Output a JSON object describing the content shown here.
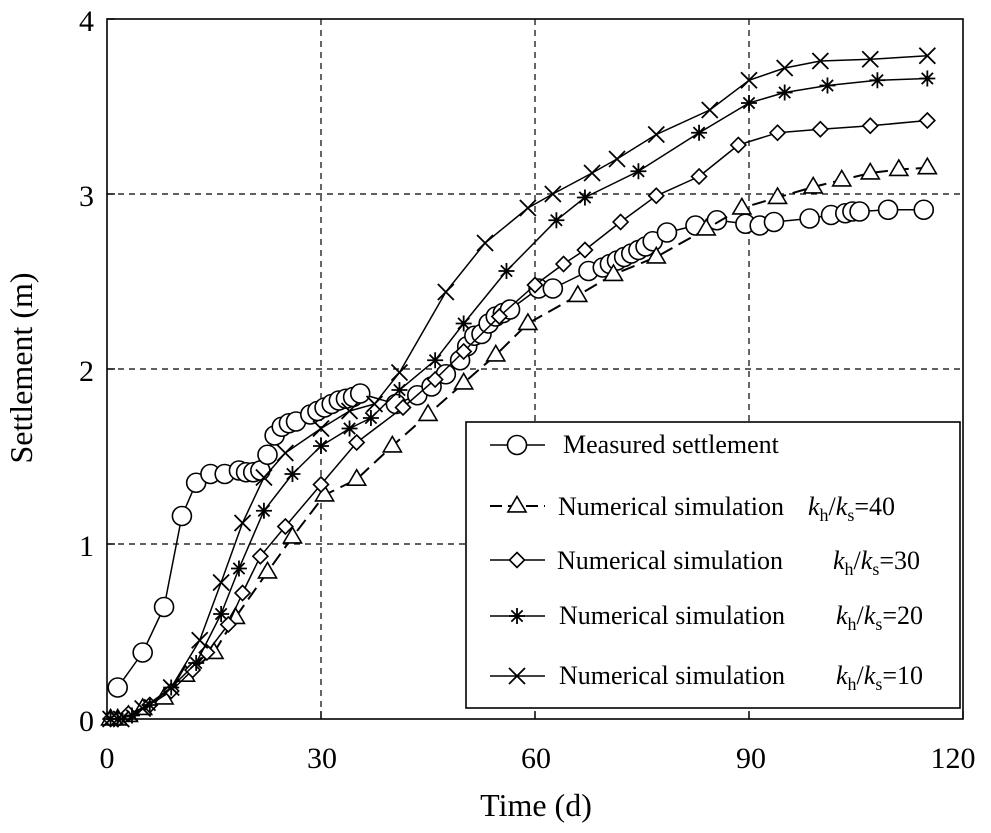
{
  "chart_data": {
    "type": "line",
    "title": "",
    "xlabel": "Time (d)",
    "ylabel": "Settlement (m)",
    "xlim": [
      0,
      120
    ],
    "ylim": [
      0,
      4
    ],
    "xticks": [
      0,
      30,
      60,
      90,
      120
    ],
    "yticks": [
      0,
      1,
      2,
      3,
      4
    ],
    "xtick_labels": [
      "0",
      "30",
      "60",
      "90",
      "120"
    ],
    "ytick_labels": [
      "0",
      "1",
      "2",
      "3",
      "4"
    ],
    "grid": true,
    "legend_position": "bottom-right",
    "series": [
      {
        "key": "measured",
        "name": "Measured settlement",
        "legend_main": "Measured settlement",
        "legend_k": "",
        "legend_h": "",
        "legend_s": "",
        "legend_val": "",
        "marker": "circle",
        "dash": false,
        "x": [
          1.5,
          5,
          8,
          10.5,
          12.5,
          14.5,
          16.5,
          18.5,
          19.5,
          20.5,
          21.5,
          22.5,
          23.5,
          24.5,
          25.5,
          26.5,
          28.5,
          29.5,
          30.5,
          31.5,
          32.5,
          33.5,
          34.5,
          35.5,
          40.5,
          43.5,
          45.5,
          47.5,
          49.5,
          50.5,
          51.5,
          52.5,
          53.5,
          54.5,
          55.5,
          56.5,
          60.5,
          62.5,
          67.5,
          69.5,
          70.5,
          71.5,
          72.5,
          73.5,
          74.5,
          75.5,
          76.5,
          78.5,
          82.5,
          85.5,
          89.5,
          91.5,
          93.5,
          98.5,
          101.5,
          103.5,
          104.5,
          105.5,
          109.5,
          114.5
        ],
        "y": [
          0.18,
          0.38,
          0.64,
          1.16,
          1.35,
          1.4,
          1.4,
          1.42,
          1.41,
          1.41,
          1.42,
          1.51,
          1.62,
          1.67,
          1.69,
          1.7,
          1.74,
          1.76,
          1.78,
          1.8,
          1.82,
          1.83,
          1.84,
          1.86,
          1.8,
          1.85,
          1.9,
          1.97,
          2.05,
          2.13,
          2.19,
          2.2,
          2.26,
          2.3,
          2.32,
          2.34,
          2.46,
          2.46,
          2.56,
          2.58,
          2.6,
          2.62,
          2.64,
          2.66,
          2.68,
          2.7,
          2.73,
          2.78,
          2.82,
          2.85,
          2.83,
          2.82,
          2.84,
          2.86,
          2.88,
          2.89,
          2.9,
          2.9,
          2.91,
          2.91
        ]
      },
      {
        "key": "k40",
        "name": "Numerical simulation kh/ks=40",
        "legend_main": "Numerical simulation",
        "legend_k": "k",
        "legend_h": "h",
        "legend_s": "s",
        "legend_val": "=40",
        "marker": "triangle",
        "dash": true,
        "x": [
          0.5,
          1.5,
          3,
          5,
          8,
          11,
          15,
          18,
          22.5,
          26,
          30.5,
          35,
          40,
          45,
          50,
          54.5,
          59,
          66,
          71,
          77,
          84,
          89,
          94,
          99,
          103,
          107,
          111,
          115
        ],
        "y": [
          0,
          0,
          0.02,
          0.06,
          0.12,
          0.25,
          0.38,
          0.58,
          0.84,
          1.04,
          1.28,
          1.37,
          1.56,
          1.74,
          1.92,
          2.08,
          2.26,
          2.42,
          2.54,
          2.64,
          2.8,
          2.92,
          2.98,
          3.04,
          3.08,
          3.12,
          3.14,
          3.15
        ]
      },
      {
        "key": "k30",
        "name": "Numerical simulation kh/ks=30",
        "legend_main": "Numerical simulation",
        "legend_k": "k",
        "legend_h": "h",
        "legend_s": "s",
        "legend_val": "=30",
        "marker": "diamond",
        "dash": false,
        "x": [
          0.5,
          1.5,
          3,
          6,
          9,
          12,
          14,
          17,
          19,
          21.5,
          25,
          30,
          35,
          41.5,
          46,
          50,
          55,
          60,
          64,
          67,
          72,
          77,
          83,
          88.5,
          94,
          100,
          107,
          115
        ],
        "y": [
          0,
          0,
          0.03,
          0.08,
          0.16,
          0.28,
          0.38,
          0.54,
          0.72,
          0.93,
          1.1,
          1.34,
          1.58,
          1.78,
          1.94,
          2.1,
          2.3,
          2.48,
          2.6,
          2.68,
          2.84,
          2.99,
          3.1,
          3.28,
          3.35,
          3.37,
          3.39,
          3.42
        ]
      },
      {
        "key": "k20",
        "name": "Numerical simulation kh/ks=20",
        "legend_main": "Numerical simulation",
        "legend_k": "k",
        "legend_h": "h",
        "legend_s": "s",
        "legend_val": "=20",
        "marker": "star",
        "dash": false,
        "x": [
          0.5,
          1.5,
          3.5,
          6,
          9,
          12.5,
          16,
          18.5,
          22,
          26,
          30,
          34,
          37,
          41,
          46,
          50,
          56,
          63,
          67,
          74.5,
          83,
          90,
          95,
          101,
          108,
          115
        ],
        "y": [
          0,
          0,
          0.02,
          0.08,
          0.18,
          0.32,
          0.6,
          0.86,
          1.19,
          1.4,
          1.56,
          1.66,
          1.72,
          1.88,
          2.05,
          2.26,
          2.56,
          2.85,
          2.98,
          3.13,
          3.35,
          3.52,
          3.58,
          3.62,
          3.65,
          3.66
        ]
      },
      {
        "key": "k10",
        "name": "Numerical simulation kh/ks=10",
        "legend_main": "Numerical simulation",
        "legend_k": "k",
        "legend_h": "h",
        "legend_s": "s",
        "legend_val": "=10",
        "marker": "x",
        "dash": false,
        "x": [
          0.5,
          2,
          5,
          9,
          13,
          16,
          19,
          22,
          25,
          30,
          34,
          37.5,
          41,
          47.5,
          53,
          59,
          62.5,
          68,
          71.5,
          77,
          84.5,
          90,
          95,
          100,
          107,
          115
        ],
        "y": [
          0,
          0,
          0.06,
          0.18,
          0.45,
          0.78,
          1.12,
          1.38,
          1.52,
          1.66,
          1.76,
          1.8,
          1.98,
          2.44,
          2.72,
          2.92,
          3.0,
          3.12,
          3.2,
          3.34,
          3.48,
          3.65,
          3.72,
          3.76,
          3.77,
          3.79
        ]
      }
    ]
  }
}
